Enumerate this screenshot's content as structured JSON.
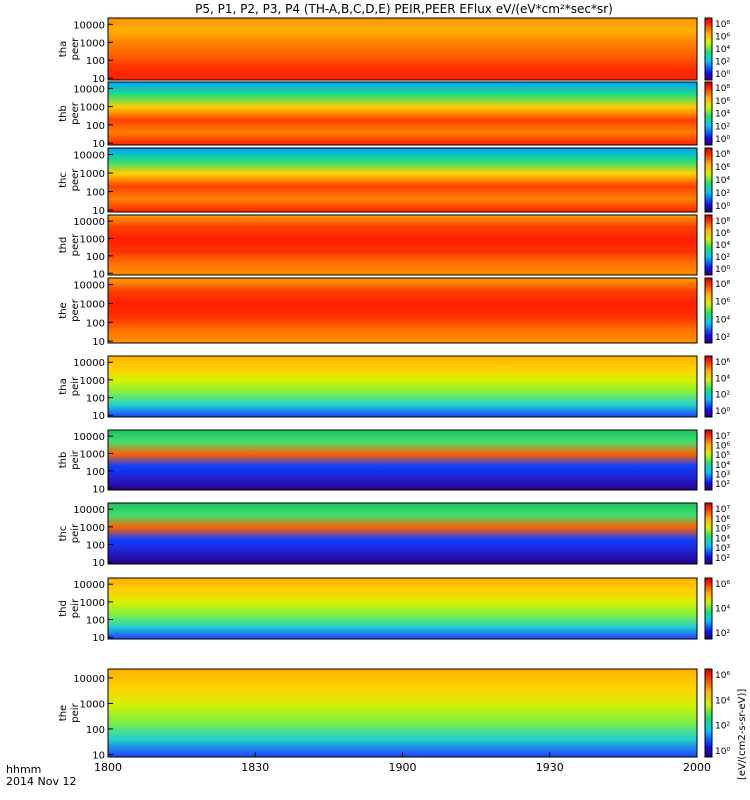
{
  "chart_data": {
    "type": "heatmap",
    "title": "P5, P1, P2, P3, P4 (TH-A,B,C,D,E) PEIR,PEER EFlux eV/(eV*cm²*sec*sr)",
    "x_ticks": [
      "1800",
      "1830",
      "1900",
      "1930",
      "2000"
    ],
    "x_label_line1": "hhmm",
    "x_label_line2": "2014 Nov 12",
    "time_range": [
      "18:00",
      "20:00"
    ],
    "y_scale": "log",
    "y_ticks": [
      "10",
      "100",
      "1000",
      "10000"
    ],
    "colorbar_label": "[eV/(cm2-s-sr-eV)]",
    "panels": [
      {
        "probe": "tha",
        "species": "peer",
        "ylabel": [
          "tha",
          "peer"
        ],
        "zticks": [
          "10⁸",
          "10⁶",
          "10⁴",
          "10²",
          "10⁰"
        ],
        "zlog_range": [
          0,
          8
        ]
      },
      {
        "probe": "thb",
        "species": "peer",
        "ylabel": [
          "thb",
          "peer"
        ],
        "zticks": [
          "10⁸",
          "10⁶",
          "10⁴",
          "10²",
          "10⁰"
        ],
        "zlog_range": [
          0,
          8
        ]
      },
      {
        "probe": "thc",
        "species": "peer",
        "ylabel": [
          "thc",
          "peer"
        ],
        "zticks": [
          "10⁸",
          "10⁶",
          "10⁴",
          "10²",
          "10⁰"
        ],
        "zlog_range": [
          0,
          8
        ]
      },
      {
        "probe": "thd",
        "species": "peer",
        "ylabel": [
          "thd",
          "peer"
        ],
        "zticks": [
          "10⁸",
          "10⁶",
          "10⁴",
          "10²",
          "10⁰"
        ],
        "zlog_range": [
          0,
          8
        ]
      },
      {
        "probe": "the",
        "species": "peer",
        "ylabel": [
          "the",
          "peer"
        ],
        "zticks": [
          "10⁸",
          "10⁶",
          "10⁴",
          "10²"
        ],
        "zlog_range": [
          1,
          8
        ]
      },
      {
        "probe": "tha",
        "species": "peir",
        "ylabel": [
          "tha",
          "peir"
        ],
        "zticks": [
          "10⁶",
          "10⁴",
          "10²",
          "10⁰"
        ],
        "zlog_range": [
          0,
          7
        ]
      },
      {
        "probe": "thb",
        "species": "peir",
        "ylabel": [
          "thb",
          "peir"
        ],
        "zticks": [
          "10⁷",
          "10⁶",
          "10⁵",
          "10⁴",
          "10³",
          "10²"
        ],
        "zlog_range": [
          2,
          7
        ]
      },
      {
        "probe": "thc",
        "species": "peir",
        "ylabel": [
          "thc",
          "peir"
        ],
        "zticks": [
          "10⁷",
          "10⁶",
          "10⁵",
          "10⁴",
          "10³",
          "10²"
        ],
        "zlog_range": [
          2,
          7
        ]
      },
      {
        "probe": "thd",
        "species": "peir",
        "ylabel": [
          "thd",
          "peir"
        ],
        "zticks": [
          "10⁶",
          "10⁴",
          "10²"
        ],
        "zlog_range": [
          1,
          7
        ]
      },
      {
        "probe": "the",
        "species": "peir",
        "ylabel": [
          "the",
          "peir"
        ],
        "zticks": [
          "10⁶",
          "10⁴",
          "10²",
          "10⁰"
        ],
        "zlog_range": [
          0,
          7
        ]
      }
    ]
  }
}
